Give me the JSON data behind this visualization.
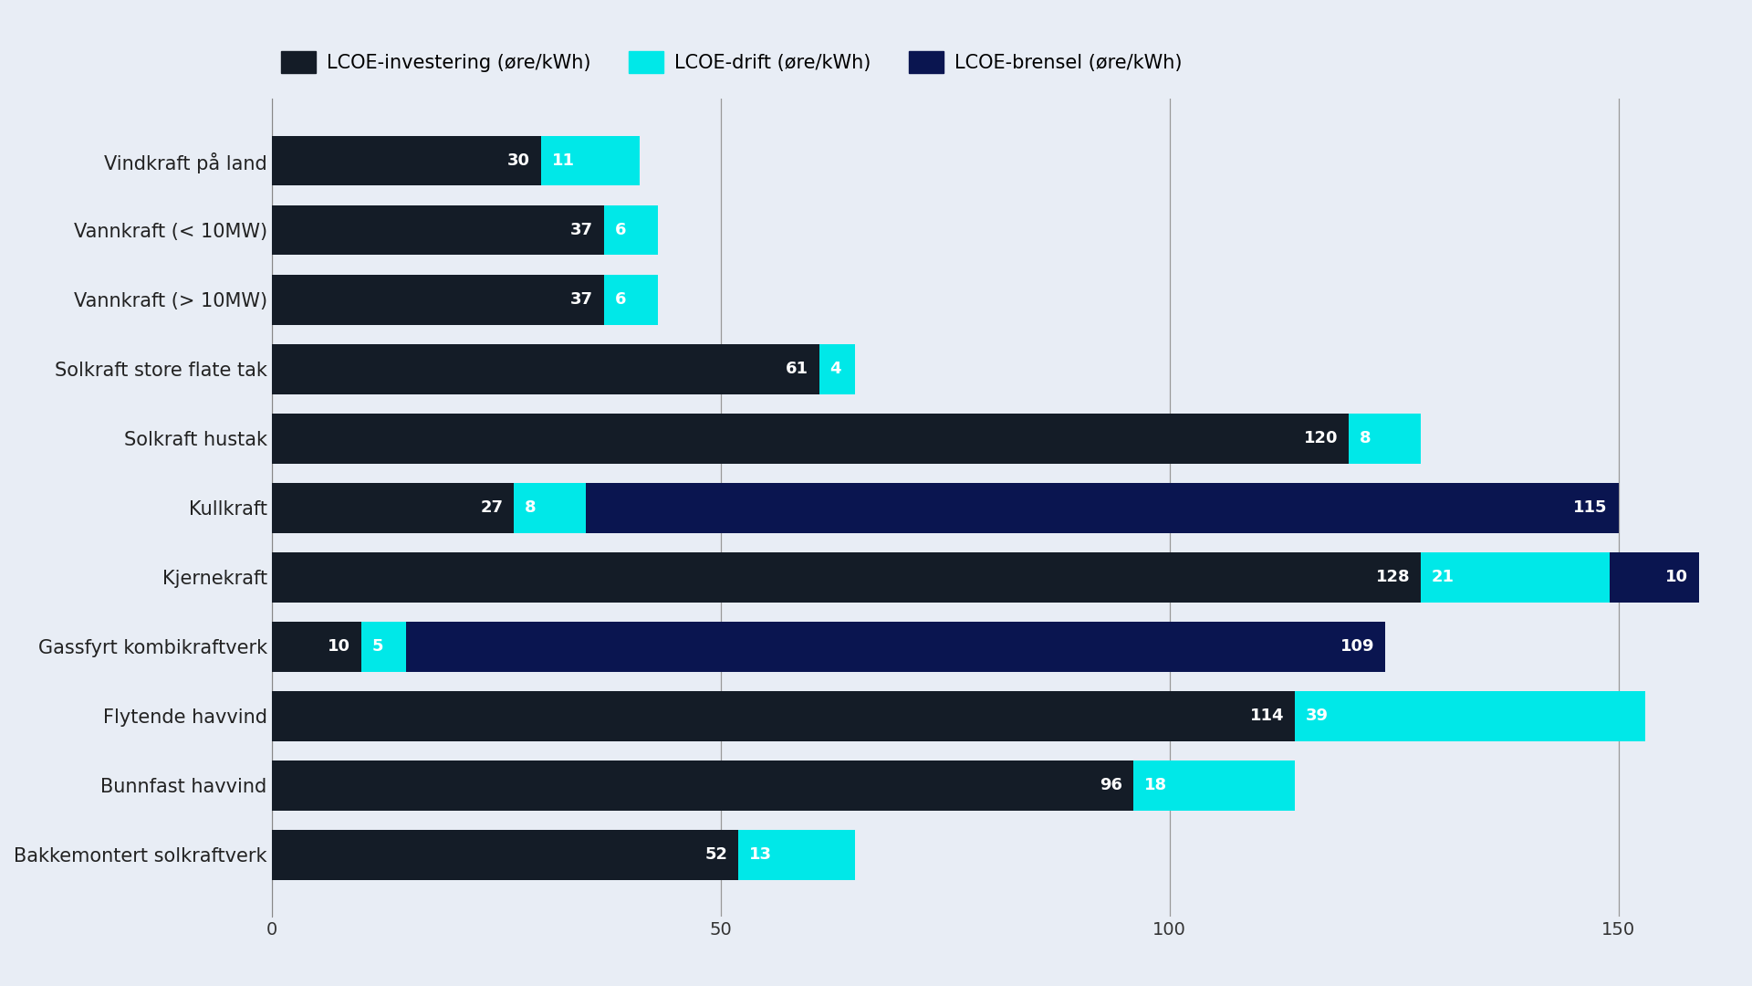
{
  "categories": [
    "Vindkraft på land",
    "Vannkraft (< 10MW)",
    "Vannkraft (> 10MW)",
    "Solkraft store flate tak",
    "Solkraft hustak",
    "Kullkraft",
    "Kjernekraft",
    "Gassfyrt kombikraftverk",
    "Flytende havvind",
    "Bunnfast havvind",
    "Bakkemontert solkraftverk"
  ],
  "investering": [
    30,
    37,
    37,
    61,
    120,
    27,
    128,
    10,
    114,
    96,
    52
  ],
  "drift": [
    11,
    6,
    6,
    4,
    8,
    8,
    21,
    5,
    39,
    18,
    13
  ],
  "brensel": [
    0,
    0,
    0,
    0,
    0,
    115,
    10,
    109,
    0,
    0,
    0
  ],
  "color_investering": "#141c27",
  "color_drift": "#00e8e8",
  "color_brensel": "#0a1550",
  "background_color": "#e8edf5",
  "xlim": [
    0,
    160
  ],
  "xticks": [
    0,
    50,
    100,
    150
  ],
  "legend_labels": [
    "LCOE-investering (øre/kWh)",
    "LCOE-drift (øre/kWh)",
    "LCOE-brensel (øre/kWh)"
  ],
  "bar_height": 0.72,
  "label_fontsize": 13,
  "tick_fontsize": 14,
  "legend_fontsize": 15,
  "ytick_fontsize": 15,
  "figsize": [
    19.2,
    10.8
  ],
  "dpi": 100
}
